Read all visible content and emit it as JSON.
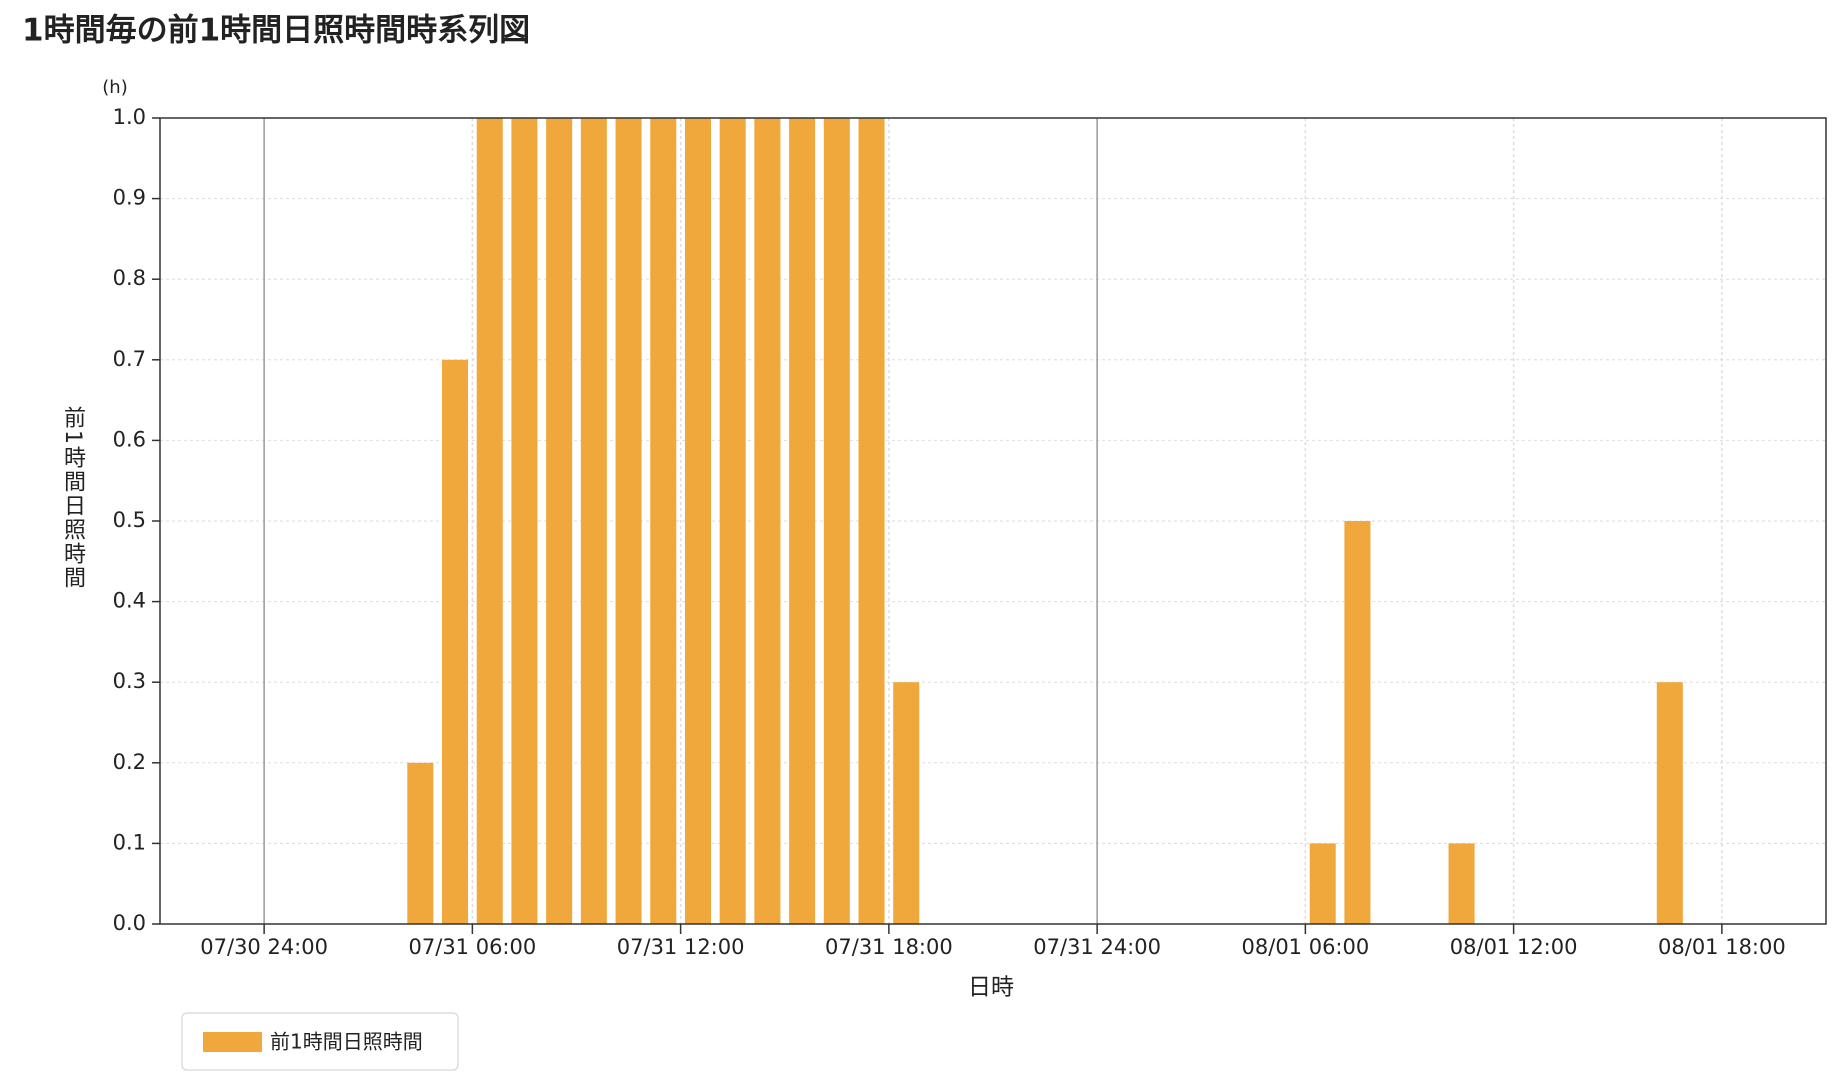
{
  "chart_data": {
    "type": "bar",
    "title": "1時間毎の前1時間日照時間時系列図",
    "y_unit": "(h)",
    "ylabel": "前1時間日照時間",
    "xlabel": "日時",
    "series": [
      {
        "name": "前1時間日照時間",
        "color": "#f0a83c",
        "x": [
          4.5,
          5.5,
          6.5,
          7.5,
          8.5,
          9.5,
          10.5,
          11.5,
          12.5,
          13.5,
          14.5,
          15.5,
          16.5,
          17.5,
          18.5,
          30.5,
          31.5,
          34.5,
          40.5
        ],
        "values": [
          0.2,
          0.7,
          1.0,
          1.0,
          1.0,
          1.0,
          1.0,
          1.0,
          1.0,
          1.0,
          1.0,
          1.0,
          1.0,
          1.0,
          0.3,
          0.1,
          0.5,
          0.1,
          0.3
        ]
      }
    ],
    "xlim": [
      -3,
      45
    ],
    "xticks": [
      {
        "value": 0,
        "label": "07/30 24:00"
      },
      {
        "value": 6,
        "label": "07/31 06:00"
      },
      {
        "value": 12,
        "label": "07/31 12:00"
      },
      {
        "value": 18,
        "label": "07/31 18:00"
      },
      {
        "value": 24,
        "label": "07/31 24:00"
      },
      {
        "value": 30,
        "label": "08/01 06:00"
      },
      {
        "value": 36,
        "label": "08/01 12:00"
      },
      {
        "value": 42,
        "label": "08/01 18:00"
      }
    ],
    "ylim": [
      0,
      1
    ],
    "yticks": [
      {
        "value": 0,
        "label": "0.0"
      },
      0.1,
      0.2,
      0.3,
      0.4,
      0.5,
      0.6,
      0.7,
      0.8,
      0.9,
      {
        "value": 1,
        "label": "1.0"
      }
    ],
    "grid": true
  }
}
